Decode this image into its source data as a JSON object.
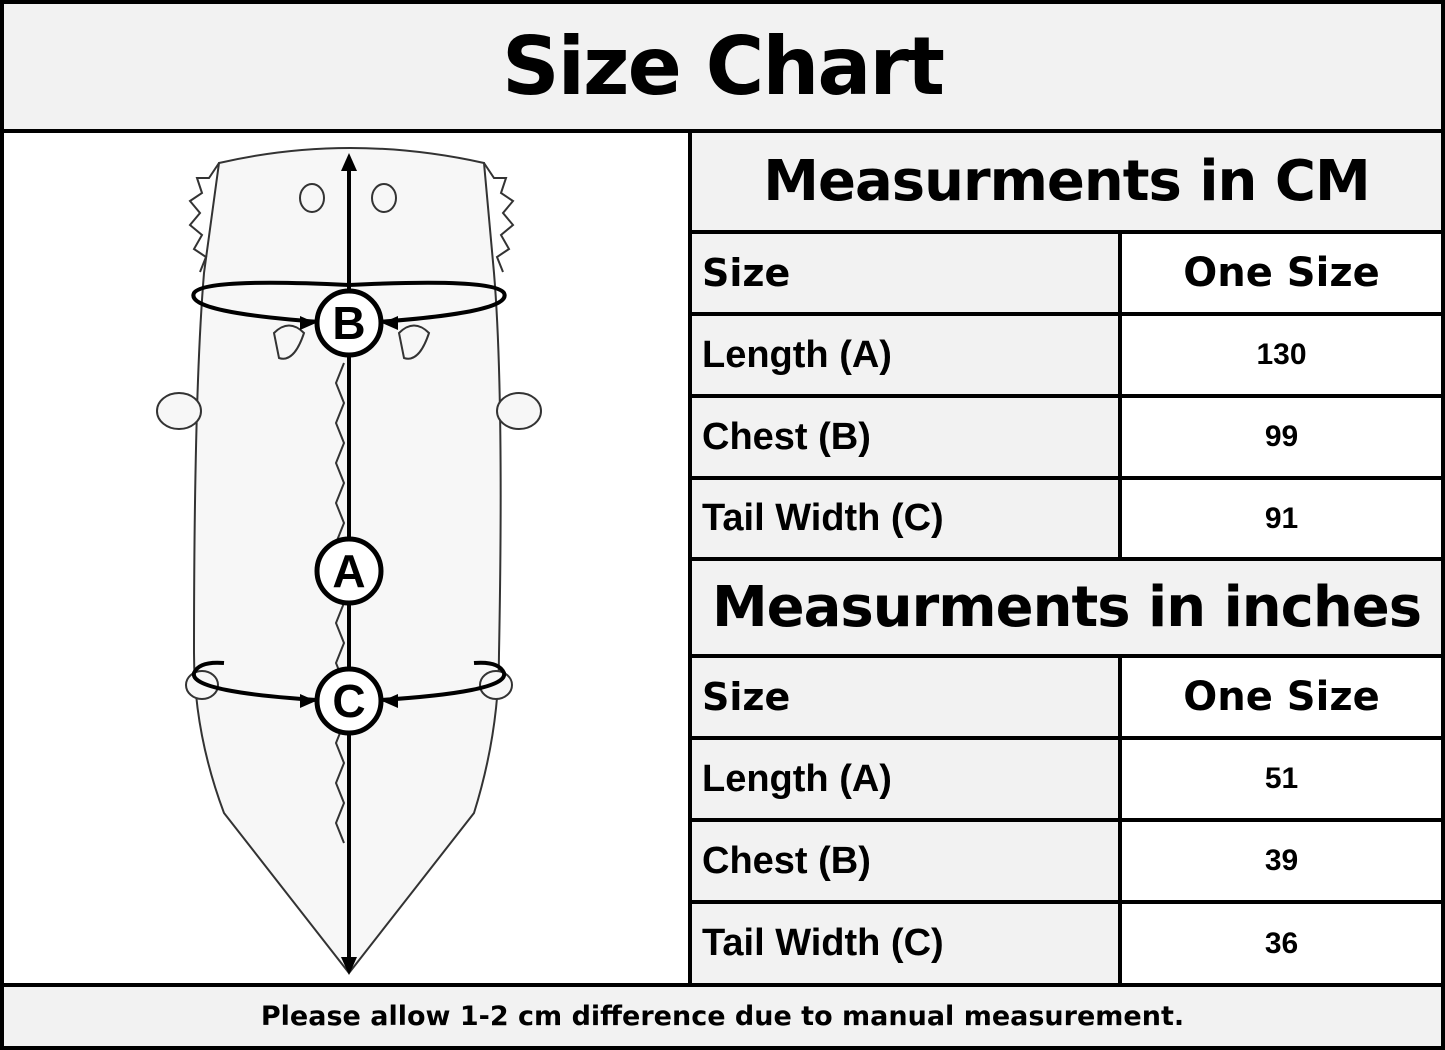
{
  "title": "Size Chart",
  "illustration": {
    "labels": {
      "a": "A",
      "b": "B",
      "c": "C"
    }
  },
  "cm_table": {
    "heading": "Measurments in CM",
    "header": [
      "Size",
      "One Size"
    ],
    "rows": [
      [
        "Length (A)",
        "130"
      ],
      [
        "Chest (B)",
        "99"
      ],
      [
        "Tail Width (C)",
        "91"
      ]
    ]
  },
  "inch_table": {
    "heading": "Measurments in inches",
    "header": [
      "Size",
      "One Size"
    ],
    "rows": [
      [
        "Length (A)",
        "51"
      ],
      [
        "Chest (B)",
        "39"
      ],
      [
        "Tail Width (C)",
        "36"
      ]
    ]
  },
  "footer": "Please allow 1-2 cm difference due to manual measurement."
}
